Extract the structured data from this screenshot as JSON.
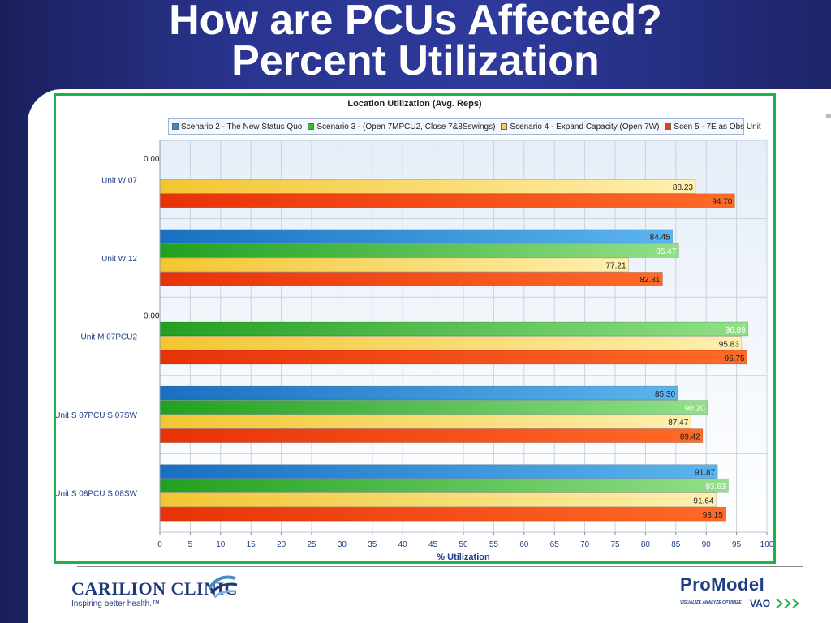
{
  "slide": {
    "title_line1": "How are PCUs Affected?",
    "title_line2": "Percent Utilization"
  },
  "logos": {
    "left_name": "CARILION CLINIC",
    "left_tagline": "Inspiring better health.™",
    "right_name": "ProModel",
    "right_tagline": "VISUALIZE ANALYZE OPTIMIZE",
    "right_mark": "VAO"
  },
  "colors": {
    "frame": "#1cb34a",
    "series": [
      "#2e8fd6",
      "#3fb838",
      "#f5d253",
      "#ee3b12"
    ]
  },
  "chart_data": {
    "type": "bar",
    "orientation": "horizontal",
    "title": "Location Utilization (Avg. Reps)",
    "xlabel": "% Utilization",
    "ylabel": "",
    "xlim": [
      0,
      100
    ],
    "xticks": [
      0,
      5,
      10,
      15,
      20,
      25,
      30,
      35,
      40,
      45,
      50,
      55,
      60,
      65,
      70,
      75,
      80,
      85,
      90,
      95,
      100
    ],
    "grid": true,
    "legend_position": "top",
    "categories": [
      "Unit W 07",
      "Unit W 12",
      "Unit M 07PCU2",
      "Unit S 07PCU S 07SW",
      "Unit S 08PCU S 08SW"
    ],
    "series": [
      {
        "name": "Scenario 2 - The New Status Quo",
        "values": [
          0.0,
          84.45,
          0.0,
          85.3,
          91.87
        ]
      },
      {
        "name": "Scenario 3 - (Open 7MPCU2, Close 7&8Sswings)",
        "values": [
          null,
          85.47,
          96.89,
          90.2,
          93.63
        ]
      },
      {
        "name": "Scenario 4 - Expand Capacity (Open 7W)",
        "values": [
          88.23,
          77.21,
          95.83,
          87.47,
          91.64
        ]
      },
      {
        "name": "Scen 5 - 7E as Obs Unit",
        "values": [
          94.7,
          82.81,
          96.75,
          89.42,
          93.15
        ]
      }
    ],
    "labels": [
      [
        "0.00",
        "",
        "88.23",
        "94.70"
      ],
      [
        "84.45",
        "85.47",
        "77.21",
        "82.81"
      ],
      [
        "0.00",
        "96.89",
        "95.83",
        "96.75"
      ],
      [
        "85.30",
        "90.20",
        "87.47",
        "89.42"
      ],
      [
        "91.87",
        "93.63",
        "91.64",
        "93.15"
      ]
    ]
  }
}
